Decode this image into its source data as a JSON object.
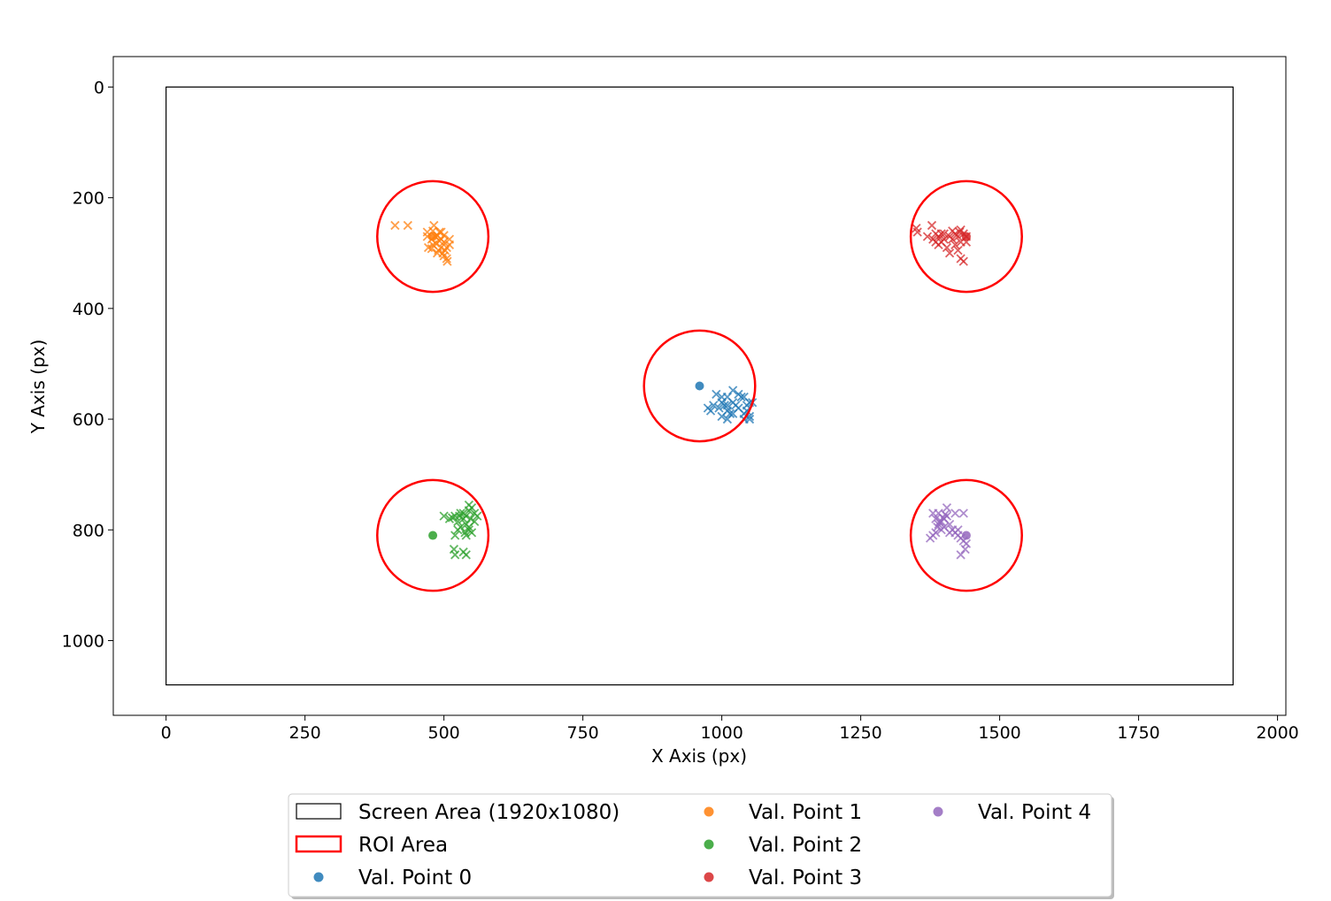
{
  "chart_data": {
    "type": "scatter",
    "title": "",
    "xlabel": "X Axis (px)",
    "ylabel": "Y Axis (px)",
    "xlim": [
      -95,
      2015
    ],
    "ylim": [
      1135,
      -55
    ],
    "y_inverted": true,
    "grid": false,
    "xticks": [
      0,
      250,
      500,
      750,
      1000,
      1250,
      1500,
      1750,
      2000
    ],
    "yticks": [
      0,
      200,
      400,
      600,
      800,
      1000
    ],
    "legend_position": "below-center",
    "legend_columns": 3,
    "screen_area": {
      "label": "Screen Area (1920x1080)",
      "x": [
        0,
        1920
      ],
      "y": [
        0,
        1080
      ],
      "color": "#000000"
    },
    "roi": {
      "label": "ROI Area",
      "color": "#ff0000",
      "radius": 100
    },
    "series": [
      {
        "name": "Val. Point 0",
        "color": "#1f77b4",
        "target": [
          960,
          540
        ],
        "gaze": [
          [
            990,
            555
          ],
          [
            1000,
            570
          ],
          [
            1010,
            560
          ],
          [
            1020,
            548
          ],
          [
            1030,
            555
          ],
          [
            1040,
            560
          ],
          [
            1050,
            570
          ],
          [
            1045,
            585
          ],
          [
            1040,
            590
          ],
          [
            1030,
            580
          ],
          [
            1020,
            570
          ],
          [
            1010,
            585
          ],
          [
            1000,
            595
          ],
          [
            1010,
            600
          ],
          [
            1020,
            590
          ],
          [
            1040,
            600
          ],
          [
            1050,
            595
          ],
          [
            1055,
            570
          ],
          [
            985,
            575
          ],
          [
            975,
            580
          ],
          [
            980,
            585
          ],
          [
            995,
            580
          ],
          [
            1005,
            575
          ],
          [
            1015,
            590
          ],
          [
            1025,
            575
          ],
          [
            1035,
            560
          ],
          [
            1045,
            575
          ],
          [
            1050,
            600
          ],
          [
            1010,
            575
          ],
          [
            1000,
            560
          ]
        ]
      },
      {
        "name": "Val. Point 1",
        "color": "#ff7f0e",
        "target": [
          480,
          270
        ],
        "gaze": [
          [
            412,
            250
          ],
          [
            435,
            250
          ],
          [
            470,
            262
          ],
          [
            480,
            260
          ],
          [
            482,
            250
          ],
          [
            488,
            268
          ],
          [
            495,
            275
          ],
          [
            500,
            280
          ],
          [
            505,
            290
          ],
          [
            510,
            285
          ],
          [
            498,
            300
          ],
          [
            505,
            310
          ],
          [
            490,
            295
          ],
          [
            478,
            292
          ],
          [
            485,
            282
          ],
          [
            495,
            262
          ],
          [
            500,
            268
          ],
          [
            510,
            275
          ],
          [
            492,
            278
          ],
          [
            480,
            285
          ],
          [
            472,
            290
          ],
          [
            488,
            300
          ],
          [
            500,
            305
          ],
          [
            506,
            315
          ],
          [
            485,
            270
          ],
          [
            495,
            290
          ],
          [
            470,
            270
          ],
          [
            478,
            275
          ],
          [
            492,
            262
          ],
          [
            502,
            295
          ]
        ]
      },
      {
        "name": "Val. Point 2",
        "color": "#2ca02c",
        "target": [
          480,
          810
        ],
        "gaze": [
          [
            500,
            775
          ],
          [
            510,
            780
          ],
          [
            520,
            775
          ],
          [
            530,
            770
          ],
          [
            535,
            780
          ],
          [
            540,
            775
          ],
          [
            545,
            765
          ],
          [
            550,
            760
          ],
          [
            555,
            770
          ],
          [
            560,
            775
          ],
          [
            540,
            790
          ],
          [
            530,
            795
          ],
          [
            545,
            800
          ],
          [
            550,
            805
          ],
          [
            540,
            810
          ],
          [
            525,
            800
          ],
          [
            520,
            810
          ],
          [
            518,
            835
          ],
          [
            520,
            845
          ],
          [
            535,
            840
          ],
          [
            540,
            845
          ],
          [
            545,
            795
          ],
          [
            535,
            770
          ],
          [
            525,
            785
          ],
          [
            515,
            778
          ],
          [
            548,
            780
          ],
          [
            555,
            785
          ],
          [
            538,
            805
          ],
          [
            528,
            775
          ],
          [
            545,
            755
          ]
        ]
      },
      {
        "name": "Val. Point 3",
        "color": "#d62728",
        "target": [
          1440,
          270
        ],
        "gaze": [
          [
            1350,
            255
          ],
          [
            1352,
            262
          ],
          [
            1370,
            270
          ],
          [
            1380,
            275
          ],
          [
            1385,
            265
          ],
          [
            1390,
            270
          ],
          [
            1395,
            280
          ],
          [
            1400,
            275
          ],
          [
            1405,
            290
          ],
          [
            1410,
            270
          ],
          [
            1415,
            260
          ],
          [
            1420,
            265
          ],
          [
            1425,
            270
          ],
          [
            1430,
            258
          ],
          [
            1435,
            265
          ],
          [
            1440,
            270
          ],
          [
            1430,
            280
          ],
          [
            1425,
            295
          ],
          [
            1430,
            310
          ],
          [
            1435,
            315
          ],
          [
            1410,
            300
          ],
          [
            1395,
            265
          ],
          [
            1385,
            280
          ],
          [
            1378,
            250
          ],
          [
            1420,
            285
          ],
          [
            1440,
            280
          ],
          [
            1415,
            275
          ],
          [
            1400,
            265
          ],
          [
            1428,
            262
          ],
          [
            1390,
            285
          ]
        ]
      },
      {
        "name": "Val. Point 4",
        "color": "#9467bd",
        "target": [
          1440,
          810
        ],
        "gaze": [
          [
            1380,
            770
          ],
          [
            1385,
            780
          ],
          [
            1390,
            790
          ],
          [
            1395,
            785
          ],
          [
            1400,
            780
          ],
          [
            1405,
            775
          ],
          [
            1410,
            790
          ],
          [
            1415,
            800
          ],
          [
            1420,
            805
          ],
          [
            1425,
            810
          ],
          [
            1430,
            815
          ],
          [
            1435,
            820
          ],
          [
            1440,
            825
          ],
          [
            1438,
            835
          ],
          [
            1430,
            845
          ],
          [
            1420,
            770
          ],
          [
            1435,
            770
          ],
          [
            1405,
            760
          ],
          [
            1395,
            800
          ],
          [
            1385,
            805
          ],
          [
            1380,
            810
          ],
          [
            1375,
            815
          ],
          [
            1400,
            795
          ],
          [
            1410,
            805
          ],
          [
            1390,
            770
          ],
          [
            1398,
            778
          ],
          [
            1388,
            795
          ],
          [
            1425,
            800
          ],
          [
            1402,
            772
          ],
          [
            1392,
            785
          ]
        ]
      }
    ]
  }
}
